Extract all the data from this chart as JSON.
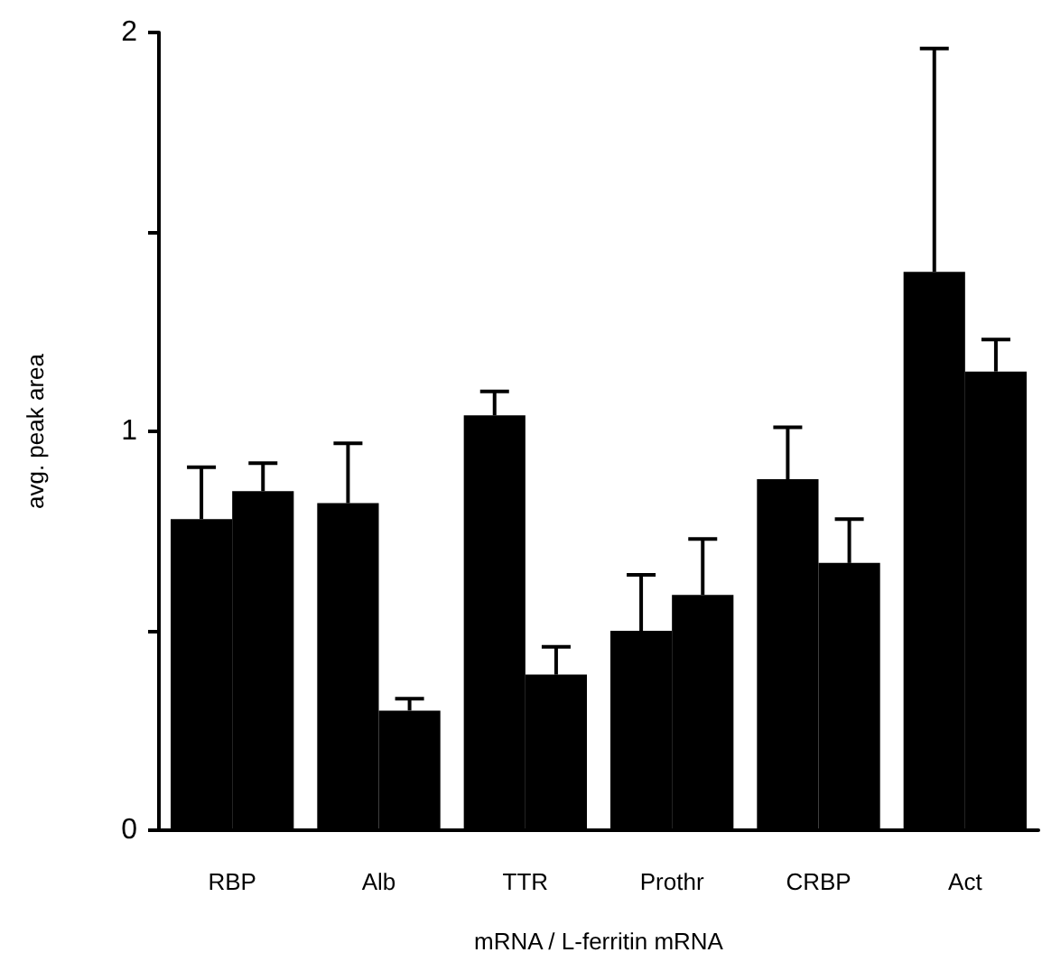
{
  "chart_data": {
    "type": "bar",
    "xlabel": "mRNA / L-ferritin mRNA",
    "ylabel": "avg. peak area",
    "categories": [
      "RBP",
      "Alb",
      "TTR",
      "Prothr",
      "CRBP",
      "Act"
    ],
    "series": [
      {
        "color": "#000000",
        "values": [
          0.78,
          0.82,
          1.04,
          0.5,
          0.88,
          1.4
        ],
        "errors": [
          [
            0.78,
            0.91
          ],
          [
            0.82,
            0.97
          ],
          [
            1.04,
            1.1
          ],
          [
            0.5,
            0.64
          ],
          [
            0.88,
            1.01
          ],
          [
            1.4,
            1.96
          ]
        ]
      },
      {
        "color": "#000000",
        "values": [
          0.85,
          0.3,
          0.39,
          0.59,
          0.67,
          1.15
        ],
        "errors": [
          [
            0.85,
            0.92
          ],
          [
            0.3,
            0.33
          ],
          [
            0.39,
            0.46
          ],
          [
            0.59,
            0.73
          ],
          [
            0.67,
            0.78
          ],
          [
            1.15,
            1.23
          ]
        ]
      }
    ],
    "ylim": [
      0,
      2
    ],
    "yticks": [
      0,
      {
        "value": 0.5,
        "label": null
      },
      1,
      {
        "value": 1.5,
        "label": null
      },
      2
    ],
    "grid": false
  }
}
